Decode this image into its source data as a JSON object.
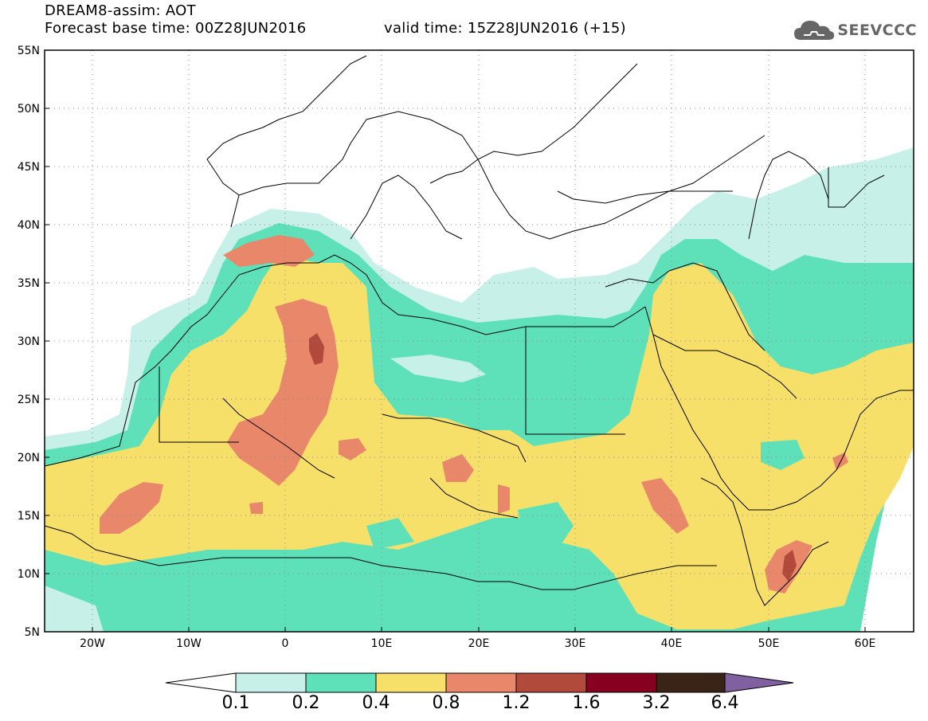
{
  "header": {
    "title": "DREAM8-assim: AOT",
    "base_time": "Forecast base time: 00Z28JUN2016",
    "valid_time": "valid time: 15Z28JUN2016 (+15)",
    "logo_text": "SEEVCCC"
  },
  "axes": {
    "lat_labels": [
      "55N",
      "50N",
      "45N",
      "40N",
      "35N",
      "30N",
      "25N",
      "20N",
      "15N",
      "10N",
      "5N"
    ],
    "lon_labels": [
      "20W",
      "10W",
      "0",
      "10E",
      "20E",
      "30E",
      "40E",
      "50E",
      "60E"
    ]
  },
  "colorbar": {
    "labels": [
      "0.1",
      "0.2",
      "0.4",
      "0.8",
      "1.2",
      "1.6",
      "3.2",
      "6.4"
    ],
    "colors": [
      "#c6f0e8",
      "#5ee0b8",
      "#f7e06a",
      "#e8876a",
      "#b24a3c",
      "#880020",
      "#3a2418",
      "#8060a0"
    ]
  },
  "map_colors": {
    "c1": "#c6f0e8",
    "c2": "#5ee0b8",
    "c3": "#f7e06a",
    "c4": "#e8876a",
    "c5": "#b24a3c"
  }
}
